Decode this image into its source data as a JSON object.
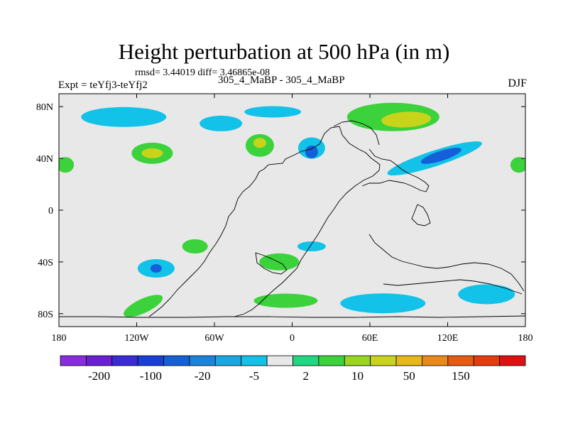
{
  "header": {
    "title": "Height perturbation at 500 hPa (in m)",
    "stats": "rmsd= 3.44019 diff= 3.46865e-08",
    "expt": "Expt = teYfj3-teYfj2",
    "runs": "305_4_MaBP - 305_4_MaBP",
    "season": "DJF"
  },
  "chart_data": {
    "type": "heatmap",
    "title": "Height perturbation at 500 hPa (in m)",
    "xlabel": "",
    "ylabel": "",
    "xlim": [
      -180,
      180
    ],
    "ylim": [
      -90,
      90
    ],
    "x_ticks": [
      {
        "value": -180,
        "label": "180"
      },
      {
        "value": -120,
        "label": "120W"
      },
      {
        "value": -60,
        "label": "60W"
      },
      {
        "value": 0,
        "label": "0"
      },
      {
        "value": 60,
        "label": "60E"
      },
      {
        "value": 120,
        "label": "120E"
      },
      {
        "value": 180,
        "label": "180"
      }
    ],
    "y_ticks": [
      {
        "value": 80,
        "label": "80N"
      },
      {
        "value": 40,
        "label": "40N"
      },
      {
        "value": 0,
        "label": "0"
      },
      {
        "value": -40,
        "label": "40S"
      },
      {
        "value": -80,
        "label": "80S"
      }
    ],
    "colorbar": {
      "colors": [
        "#8a2be2",
        "#6a1fd6",
        "#3a2ad8",
        "#1a3fd8",
        "#1560d8",
        "#1a84dc",
        "#18a8e0",
        "#12c2e8",
        "#e8e8e8",
        "#20d880",
        "#3cd23c",
        "#9ad61e",
        "#c8d41a",
        "#e6b818",
        "#e88a16",
        "#e85a12",
        "#e83a10",
        "#e01010"
      ],
      "tick_labels": [
        "-200",
        "-100",
        "-20",
        "-5",
        "2",
        "10",
        "50",
        "150"
      ]
    },
    "anomalies": [
      {
        "lon": -130,
        "lat": 72,
        "value": -5
      },
      {
        "lon": -55,
        "lat": 67,
        "value": -5
      },
      {
        "lon": -15,
        "lat": 76,
        "value": -5
      },
      {
        "lon": 15,
        "lat": 48,
        "value": -5
      },
      {
        "lon": 15,
        "lat": 45,
        "value": -20
      },
      {
        "lon": 78,
        "lat": 72,
        "value": 10
      },
      {
        "lon": 88,
        "lat": 70,
        "value": 50
      },
      {
        "lon": 110,
        "lat": 40,
        "value": -5
      },
      {
        "lon": 115,
        "lat": 42,
        "value": -20
      },
      {
        "lon": -108,
        "lat": 44,
        "value": 10
      },
      {
        "lon": -108,
        "lat": 44,
        "value": 50
      },
      {
        "lon": -25,
        "lat": 50,
        "value": 10
      },
      {
        "lon": -25,
        "lat": 52,
        "value": 50
      },
      {
        "lon": -175,
        "lat": 35,
        "value": 10
      },
      {
        "lon": 175,
        "lat": 35,
        "value": 10
      },
      {
        "lon": -105,
        "lat": -45,
        "value": -5
      },
      {
        "lon": -105,
        "lat": -45,
        "value": -20
      },
      {
        "lon": -75,
        "lat": -28,
        "value": 10
      },
      {
        "lon": -10,
        "lat": -40,
        "value": 10
      },
      {
        "lon": 15,
        "lat": -28,
        "value": -5
      },
      {
        "lon": -5,
        "lat": -70,
        "value": 10
      },
      {
        "lon": -115,
        "lat": -74,
        "value": 10
      },
      {
        "lon": 70,
        "lat": -72,
        "value": -5
      },
      {
        "lon": 150,
        "lat": -65,
        "value": -5
      }
    ]
  }
}
